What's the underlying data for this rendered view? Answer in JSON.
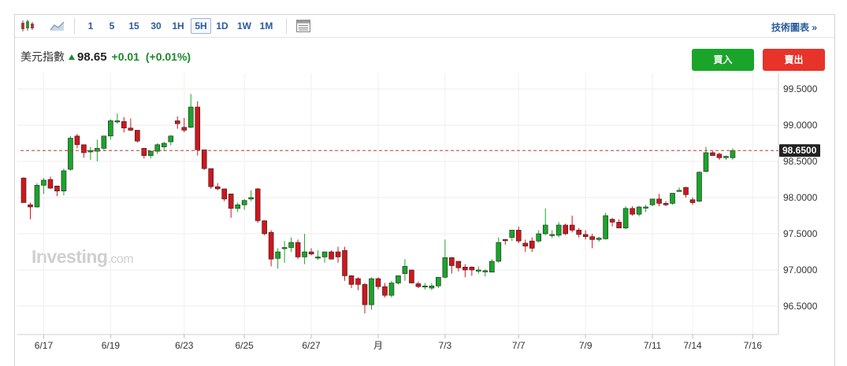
{
  "toolbar": {
    "timeframes": [
      "1",
      "5",
      "15",
      "30",
      "1H",
      "5H",
      "1D",
      "1W",
      "1M"
    ],
    "active_timeframe": "5H",
    "tech_chart_label": "技術圖表 »",
    "icons": [
      "candlestick-icon",
      "area-chart-icon",
      "table-icon"
    ]
  },
  "quote": {
    "name": "美元指數",
    "price": "98.65",
    "change": "+0.01",
    "change_pct": "(+0.01%)",
    "direction": "up"
  },
  "actions": {
    "buy_label": "買入",
    "sell_label": "賣出"
  },
  "watermark": {
    "brand": "Investing",
    "suffix": ".com"
  },
  "colors": {
    "up": "#1aa52a",
    "down": "#d0161c",
    "buy": "#1aa52a",
    "sell": "#e8332a",
    "current_line": "#c0392b",
    "current_label_bg": "#222222"
  },
  "chart_data": {
    "type": "candlestick",
    "title": "美元指數",
    "ylim": [
      96.2,
      99.7
    ],
    "yticks": [
      "99.5000",
      "99.0000",
      "98.5000",
      "98.0000",
      "97.5000",
      "97.0000",
      "96.5000"
    ],
    "ytick_values": [
      99.5,
      99.0,
      98.5,
      98.0,
      97.5,
      97.0,
      96.5
    ],
    "xtick_labels": [
      "6/17",
      "6/19",
      "6/23",
      "6/25",
      "6/27",
      "月",
      "7/3",
      "7/7",
      "7/9",
      "7/11",
      "7/14",
      "7/16"
    ],
    "xtick_candle_index": [
      3,
      13,
      24,
      33,
      43,
      53,
      63,
      74,
      84,
      94,
      100,
      109
    ],
    "current_value": 98.65,
    "current_label": "98.6500",
    "grid": true,
    "candles": [
      [
        98.27,
        98.28,
        97.93,
        97.93
      ],
      [
        97.9,
        97.93,
        97.7,
        97.87
      ],
      [
        97.87,
        98.2,
        97.86,
        98.17
      ],
      [
        98.17,
        98.27,
        98.05,
        98.24
      ],
      [
        98.25,
        98.29,
        98.12,
        98.13
      ],
      [
        98.16,
        98.16,
        98.02,
        98.09
      ],
      [
        98.09,
        98.4,
        98.03,
        98.37
      ],
      [
        98.39,
        98.85,
        98.37,
        98.82
      ],
      [
        98.85,
        98.88,
        98.68,
        98.73
      ],
      [
        98.73,
        98.73,
        98.55,
        98.62
      ],
      [
        98.63,
        98.7,
        98.52,
        98.65
      ],
      [
        98.64,
        98.8,
        98.5,
        98.68
      ],
      [
        98.68,
        98.85,
        98.64,
        98.85
      ],
      [
        98.85,
        99.08,
        98.8,
        99.06
      ],
      [
        99.05,
        99.16,
        99.02,
        99.06
      ],
      [
        99.05,
        99.11,
        98.9,
        98.96
      ],
      [
        98.96,
        99.09,
        98.92,
        98.93
      ],
      [
        98.93,
        98.93,
        98.76,
        98.78
      ],
      [
        98.68,
        98.68,
        98.54,
        98.58
      ],
      [
        98.58,
        98.65,
        98.54,
        98.64
      ],
      [
        98.64,
        98.75,
        98.6,
        98.73
      ],
      [
        98.7,
        98.77,
        98.64,
        98.75
      ],
      [
        98.77,
        98.86,
        98.72,
        98.85
      ],
      [
        99.06,
        99.12,
        98.95,
        99.02
      ],
      [
        98.97,
        99.1,
        98.9,
        98.93
      ],
      [
        98.97,
        99.43,
        98.96,
        99.25
      ],
      [
        99.25,
        99.33,
        98.58,
        98.66
      ],
      [
        98.66,
        98.66,
        98.38,
        98.4
      ],
      [
        98.4,
        98.4,
        98.12,
        98.15
      ],
      [
        98.15,
        98.2,
        98.1,
        98.12
      ],
      [
        98.12,
        98.12,
        97.95,
        97.98
      ],
      [
        98.05,
        98.05,
        97.72,
        97.85
      ],
      [
        97.85,
        97.93,
        97.8,
        97.9
      ],
      [
        97.9,
        97.98,
        97.83,
        97.96
      ],
      [
        97.98,
        98.1,
        97.95,
        98.0
      ],
      [
        98.12,
        98.13,
        97.65,
        97.68
      ],
      [
        97.68,
        97.68,
        97.48,
        97.5
      ],
      [
        97.52,
        97.55,
        97.05,
        97.15
      ],
      [
        97.16,
        97.3,
        97.02,
        97.25
      ],
      [
        97.3,
        97.4,
        97.1,
        97.31
      ],
      [
        97.31,
        97.45,
        97.25,
        97.38
      ],
      [
        97.38,
        97.42,
        97.15,
        97.18
      ],
      [
        97.18,
        97.5,
        97.08,
        97.25
      ],
      [
        97.25,
        97.3,
        97.2,
        97.22
      ],
      [
        97.18,
        97.27,
        97.14,
        97.18
      ],
      [
        97.18,
        97.25,
        97.1,
        97.25
      ],
      [
        97.25,
        97.27,
        97.15,
        97.15
      ],
      [
        97.25,
        97.32,
        97.1,
        97.18
      ],
      [
        97.27,
        97.32,
        96.85,
        96.92
      ],
      [
        96.92,
        96.93,
        96.75,
        96.8
      ],
      [
        96.88,
        96.9,
        96.72,
        96.8
      ],
      [
        96.8,
        96.82,
        96.4,
        96.52
      ],
      [
        96.52,
        96.9,
        96.45,
        96.88
      ],
      [
        96.88,
        96.9,
        96.73,
        96.77
      ],
      [
        96.77,
        96.82,
        96.62,
        96.65
      ],
      [
        96.65,
        96.85,
        96.62,
        96.82
      ],
      [
        96.82,
        96.92,
        96.8,
        96.92
      ],
      [
        96.95,
        97.15,
        96.85,
        97.05
      ],
      [
        97.0,
        97.0,
        96.82,
        96.82
      ],
      [
        96.81,
        96.84,
        96.75,
        96.77
      ],
      [
        96.78,
        96.82,
        96.73,
        96.78
      ],
      [
        96.75,
        96.82,
        96.72,
        96.78
      ],
      [
        96.78,
        96.9,
        96.75,
        96.9
      ],
      [
        96.9,
        97.42,
        96.88,
        97.17
      ],
      [
        97.17,
        97.18,
        96.95,
        97.06
      ],
      [
        97.12,
        97.12,
        96.98,
        97.03
      ],
      [
        97.04,
        97.08,
        96.9,
        97.0
      ],
      [
        97.04,
        97.05,
        96.92,
        97.0
      ],
      [
        97.0,
        97.05,
        96.95,
        97.0
      ],
      [
        96.99,
        97.01,
        96.91,
        96.99
      ],
      [
        96.97,
        97.15,
        96.97,
        97.12
      ],
      [
        97.12,
        97.45,
        97.1,
        97.38
      ],
      [
        97.42,
        97.43,
        97.35,
        97.41
      ],
      [
        97.45,
        97.55,
        97.4,
        97.55
      ],
      [
        97.55,
        97.6,
        97.37,
        97.4
      ],
      [
        97.37,
        97.42,
        97.25,
        97.33
      ],
      [
        97.4,
        97.45,
        97.25,
        97.3
      ],
      [
        97.4,
        97.55,
        97.38,
        97.5
      ],
      [
        97.5,
        97.85,
        97.48,
        97.62
      ],
      [
        97.49,
        97.55,
        97.44,
        97.49
      ],
      [
        97.48,
        97.66,
        97.45,
        97.62
      ],
      [
        97.62,
        97.64,
        97.48,
        97.5
      ],
      [
        97.62,
        97.75,
        97.52,
        97.55
      ],
      [
        97.55,
        97.58,
        97.45,
        97.49
      ],
      [
        97.49,
        97.55,
        97.42,
        97.46
      ],
      [
        97.46,
        97.5,
        97.3,
        97.42
      ],
      [
        97.42,
        97.46,
        97.39,
        97.44
      ],
      [
        97.43,
        97.79,
        97.42,
        97.75
      ],
      [
        97.7,
        97.72,
        97.6,
        97.66
      ],
      [
        97.66,
        97.7,
        97.58,
        97.58
      ],
      [
        97.58,
        97.88,
        97.56,
        97.85
      ],
      [
        97.85,
        97.88,
        97.75,
        97.77
      ],
      [
        97.77,
        97.88,
        97.74,
        97.87
      ],
      [
        97.86,
        97.9,
        97.8,
        97.87
      ],
      [
        97.9,
        97.98,
        97.88,
        97.98
      ],
      [
        97.98,
        98.05,
        97.88,
        97.92
      ],
      [
        97.92,
        97.95,
        97.88,
        97.9
      ],
      [
        97.92,
        98.06,
        97.9,
        98.06
      ],
      [
        98.1,
        98.14,
        98.08,
        98.1
      ],
      [
        98.14,
        98.15,
        98.0,
        98.04
      ],
      [
        97.97,
        98.0,
        97.9,
        97.93
      ],
      [
        97.95,
        98.36,
        97.94,
        98.35
      ],
      [
        98.36,
        98.7,
        98.35,
        98.62
      ],
      [
        98.62,
        98.64,
        98.58,
        98.58
      ],
      [
        98.6,
        98.62,
        98.52,
        98.55
      ],
      [
        98.55,
        98.58,
        98.52,
        98.57
      ],
      [
        98.55,
        98.68,
        98.52,
        98.65
      ]
    ]
  }
}
